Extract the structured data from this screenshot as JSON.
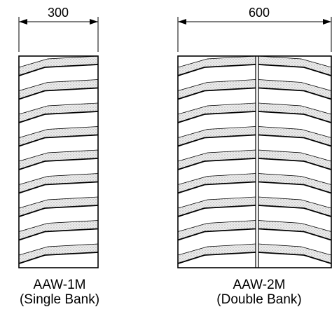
{
  "single_bank": {
    "dimension": "300",
    "model": "AAW-1M",
    "bank": "(Single Bank)",
    "blade_count": 9
  },
  "double_bank": {
    "dimension": "600",
    "model": "AAW-2M",
    "bank": "(Double Bank)",
    "blade_count": 9
  },
  "colors": {
    "line": "#000000",
    "blade_fill": "#d8d8d8",
    "background": "#ffffff"
  }
}
